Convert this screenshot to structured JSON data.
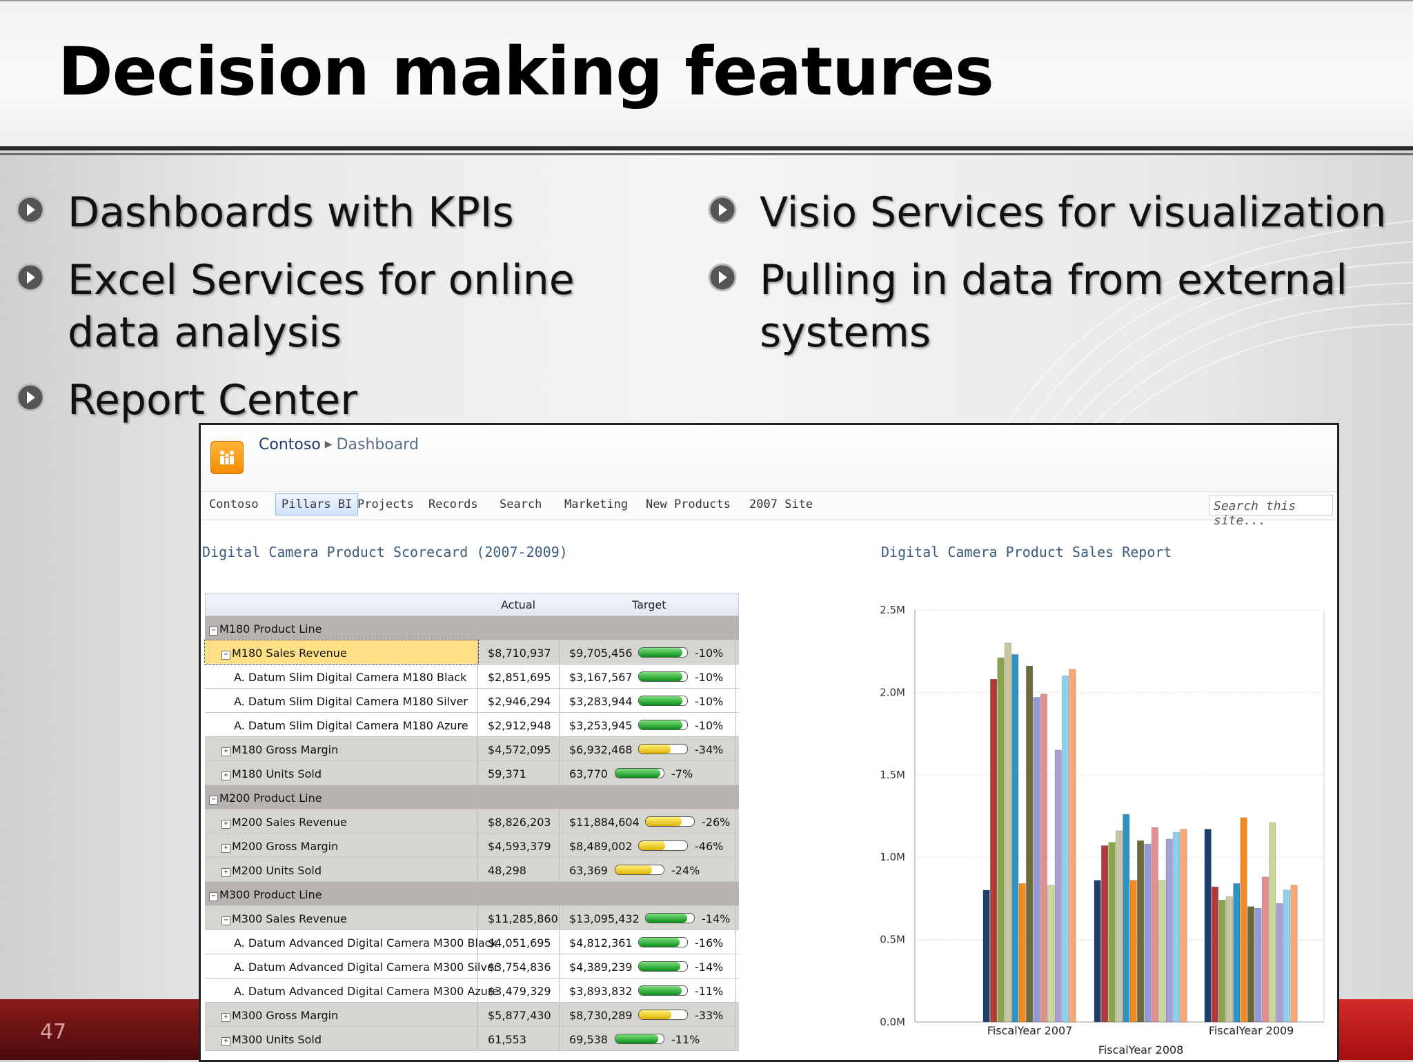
{
  "slide": {
    "title": "Decision making features",
    "page_number": "47",
    "bullets_left": [
      "Dashboards with KPIs",
      "Excel Services for online data analysis",
      "Report Center"
    ],
    "bullets_right": [
      "Visio Services for visualization",
      "Pulling in data from external systems"
    ]
  },
  "sharepoint": {
    "breadcrumb": [
      "Contoso",
      "Dashboard"
    ],
    "nav": [
      "Contoso",
      "Pillars BI",
      "Projects",
      "Records",
      "Search",
      "Marketing",
      "New Products",
      "2007 Site"
    ],
    "nav_selected": "Pillars BI",
    "search_placeholder": "Search this site...",
    "scorecard_title": "Digital Camera Product Scorecard (2007-2009)",
    "report_title": "Digital Camera Product Sales Report",
    "columns": [
      "Actual",
      "Target"
    ]
  },
  "scorecard_rows": [
    {
      "type": "group",
      "indent": 0,
      "toggle": "−",
      "name": "M180 Product Line",
      "actual": "",
      "target": "",
      "status": "",
      "fill": 0,
      "variance": ""
    },
    {
      "type": "metric",
      "indent": 1,
      "toggle": "−",
      "name": "M180 Sales Revenue",
      "actual": "$8,710,937",
      "target": "$9,705,456",
      "status": "green",
      "fill": 0.9,
      "variance": "-10%",
      "highlight": true
    },
    {
      "type": "leaf",
      "indent": 2,
      "toggle": "",
      "name": "A. Datum Slim Digital Camera M180 Black",
      "actual": "$2,851,695",
      "target": "$3,167,567",
      "status": "green",
      "fill": 0.9,
      "variance": "-10%"
    },
    {
      "type": "leaf",
      "indent": 2,
      "toggle": "",
      "name": "A. Datum Slim Digital Camera M180 Silver",
      "actual": "$2,946,294",
      "target": "$3,283,944",
      "status": "green",
      "fill": 0.9,
      "variance": "-10%"
    },
    {
      "type": "leaf",
      "indent": 2,
      "toggle": "",
      "name": "A. Datum Slim Digital Camera M180 Azure",
      "actual": "$2,912,948",
      "target": "$3,253,945",
      "status": "green",
      "fill": 0.9,
      "variance": "-10%"
    },
    {
      "type": "metric",
      "indent": 1,
      "toggle": "+",
      "name": "M180 Gross Margin",
      "actual": "$4,572,095",
      "target": "$6,932,468",
      "status": "yellow",
      "fill": 0.66,
      "variance": "-34%"
    },
    {
      "type": "metric",
      "indent": 1,
      "toggle": "+",
      "name": "M180 Units Sold",
      "actual": "59,371",
      "target": "63,770",
      "status": "green",
      "fill": 0.93,
      "variance": "-7%"
    },
    {
      "type": "group",
      "indent": 0,
      "toggle": "−",
      "name": "M200 Product Line",
      "actual": "",
      "target": "",
      "status": "",
      "fill": 0,
      "variance": ""
    },
    {
      "type": "metric",
      "indent": 1,
      "toggle": "+",
      "name": "M200 Sales Revenue",
      "actual": "$8,826,203",
      "target": "$11,884,604",
      "status": "yellow",
      "fill": 0.74,
      "variance": "-26%"
    },
    {
      "type": "metric",
      "indent": 1,
      "toggle": "+",
      "name": "M200 Gross Margin",
      "actual": "$4,593,379",
      "target": "$8,489,002",
      "status": "yellow",
      "fill": 0.54,
      "variance": "-46%"
    },
    {
      "type": "metric",
      "indent": 1,
      "toggle": "+",
      "name": "M200 Units Sold",
      "actual": "48,298",
      "target": "63,369",
      "status": "yellow",
      "fill": 0.76,
      "variance": "-24%"
    },
    {
      "type": "group",
      "indent": 0,
      "toggle": "−",
      "name": "M300 Product Line",
      "actual": "",
      "target": "",
      "status": "",
      "fill": 0,
      "variance": ""
    },
    {
      "type": "metric",
      "indent": 1,
      "toggle": "−",
      "name": "M300 Sales Revenue",
      "actual": "$11,285,860",
      "target": "$13,095,432",
      "status": "green",
      "fill": 0.86,
      "variance": "-14%"
    },
    {
      "type": "leaf",
      "indent": 2,
      "toggle": "",
      "name": "A. Datum Advanced Digital Camera M300 Black",
      "actual": "$4,051,695",
      "target": "$4,812,361",
      "status": "green",
      "fill": 0.84,
      "variance": "-16%"
    },
    {
      "type": "leaf",
      "indent": 2,
      "toggle": "",
      "name": "A. Datum Advanced Digital Camera M300 Silver",
      "actual": "$3,754,836",
      "target": "$4,389,239",
      "status": "green",
      "fill": 0.86,
      "variance": "-14%"
    },
    {
      "type": "leaf",
      "indent": 2,
      "toggle": "",
      "name": "A. Datum Advanced Digital Camera M300 Azure",
      "actual": "$3,479,329",
      "target": "$3,893,832",
      "status": "green",
      "fill": 0.89,
      "variance": "-11%"
    },
    {
      "type": "metric",
      "indent": 1,
      "toggle": "+",
      "name": "M300 Gross Margin",
      "actual": "$5,877,430",
      "target": "$8,730,289",
      "status": "yellow",
      "fill": 0.67,
      "variance": "-33%"
    },
    {
      "type": "metric",
      "indent": 1,
      "toggle": "+",
      "name": "M300 Units Sold",
      "actual": "61,553",
      "target": "69,538",
      "status": "green",
      "fill": 0.89,
      "variance": "-11%"
    }
  ],
  "chart_data": {
    "type": "bar",
    "title": "Digital Camera Product Sales Report",
    "categories": [
      "FiscalYear 2007",
      "FiscalYear 2008",
      "FiscalYear 2009"
    ],
    "ylim": [
      0,
      2500000
    ],
    "yticks": [
      "0.0M",
      "0.5M",
      "1.0M",
      "1.5M",
      "2.0M",
      "2.5M"
    ],
    "grid": true,
    "series": [
      {
        "color": "#1f3f6e",
        "values": [
          800000,
          860000,
          1170000
        ]
      },
      {
        "color": "#b03a3a",
        "values": [
          2080000,
          1070000,
          820000
        ]
      },
      {
        "color": "#8aa64a",
        "values": [
          2210000,
          1090000,
          740000
        ]
      },
      {
        "color": "#c9c7a0",
        "values": [
          2300000,
          1160000,
          760000
        ]
      },
      {
        "color": "#2f93c2",
        "values": [
          2230000,
          1260000,
          840000
        ]
      },
      {
        "color": "#f28a22",
        "values": [
          840000,
          860000,
          1240000
        ]
      },
      {
        "color": "#6b6b3a",
        "values": [
          2160000,
          1100000,
          700000
        ]
      },
      {
        "color": "#9399d6",
        "values": [
          1970000,
          1080000,
          690000
        ]
      },
      {
        "color": "#e48f8f",
        "values": [
          1990000,
          1180000,
          880000
        ]
      },
      {
        "color": "#c9d79a",
        "values": [
          830000,
          860000,
          1210000
        ]
      },
      {
        "color": "#a79fd6",
        "values": [
          1650000,
          1110000,
          720000
        ]
      },
      {
        "color": "#8fd0ea",
        "values": [
          2100000,
          1150000,
          800000
        ]
      },
      {
        "color": "#f7a877",
        "values": [
          2140000,
          1170000,
          830000
        ]
      }
    ]
  }
}
